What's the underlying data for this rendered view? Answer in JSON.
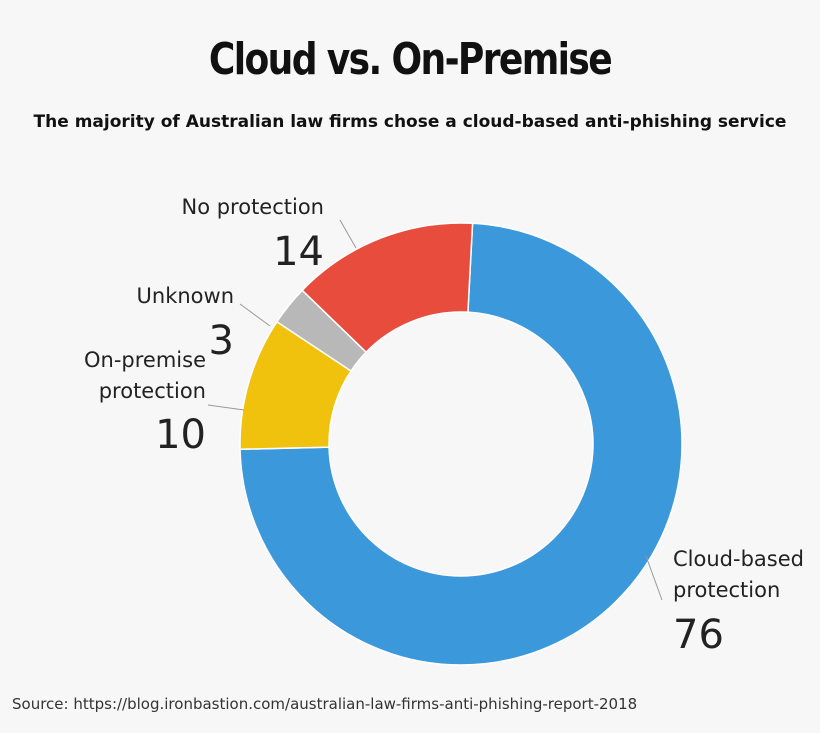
{
  "chart_data": {
    "type": "pie",
    "title": "Cloud vs. On-Premise",
    "subtitle": "The majority of Australian law firms chose a cloud-based anti-phishing service",
    "slices": [
      {
        "label": "Cloud-based protection",
        "value": 76,
        "color": "#3a98db"
      },
      {
        "label": "On-premise protection",
        "value": 10,
        "color": "#f0c20e"
      },
      {
        "label": "Unknown",
        "value": 3,
        "color": "#b8b8b8"
      },
      {
        "label": "No protection",
        "value": 14,
        "color": "#e84c3d"
      }
    ],
    "source": "Source: https://blog.ironbastion.com/australian-law-firms-anti-phishing-report-2018"
  }
}
